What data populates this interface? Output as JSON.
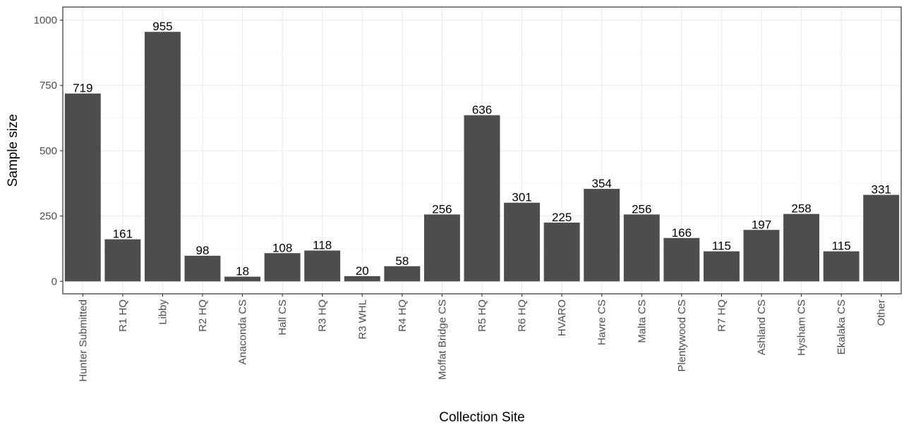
{
  "chart_data": {
    "type": "bar",
    "xlabel": "Collection Site",
    "ylabel": "Sample size",
    "categories": [
      "Hunter Submitted",
      "R1 HQ",
      "Libby",
      "R2 HQ",
      "Anaconda CS",
      "Hall CS",
      "R3 HQ",
      "R3 WHL",
      "R4 HQ",
      "Moffat Bridge CS",
      "R5 HQ",
      "R6 HQ",
      "HVARO",
      "Havre CS",
      "Malta CS",
      "Plentywood CS",
      "R7 HQ",
      "Ashland CS",
      "Hysham CS",
      "Ekalaka CS",
      "Other"
    ],
    "values": [
      719,
      161,
      955,
      98,
      18,
      108,
      118,
      20,
      58,
      256,
      636,
      301,
      225,
      354,
      256,
      166,
      115,
      197,
      258,
      115,
      331
    ],
    "yticks": [
      0,
      250,
      500,
      750,
      1000
    ],
    "ytick_labels": [
      "0",
      "250",
      "500",
      "750",
      "1000"
    ],
    "ylim": [
      -47.75,
      1050
    ],
    "grid": true,
    "legend": "none",
    "colors": {
      "bar": "#4d4d4d",
      "grid": "#ebebeb",
      "panel_border": "#333333",
      "text": "#4d4d4d"
    }
  }
}
